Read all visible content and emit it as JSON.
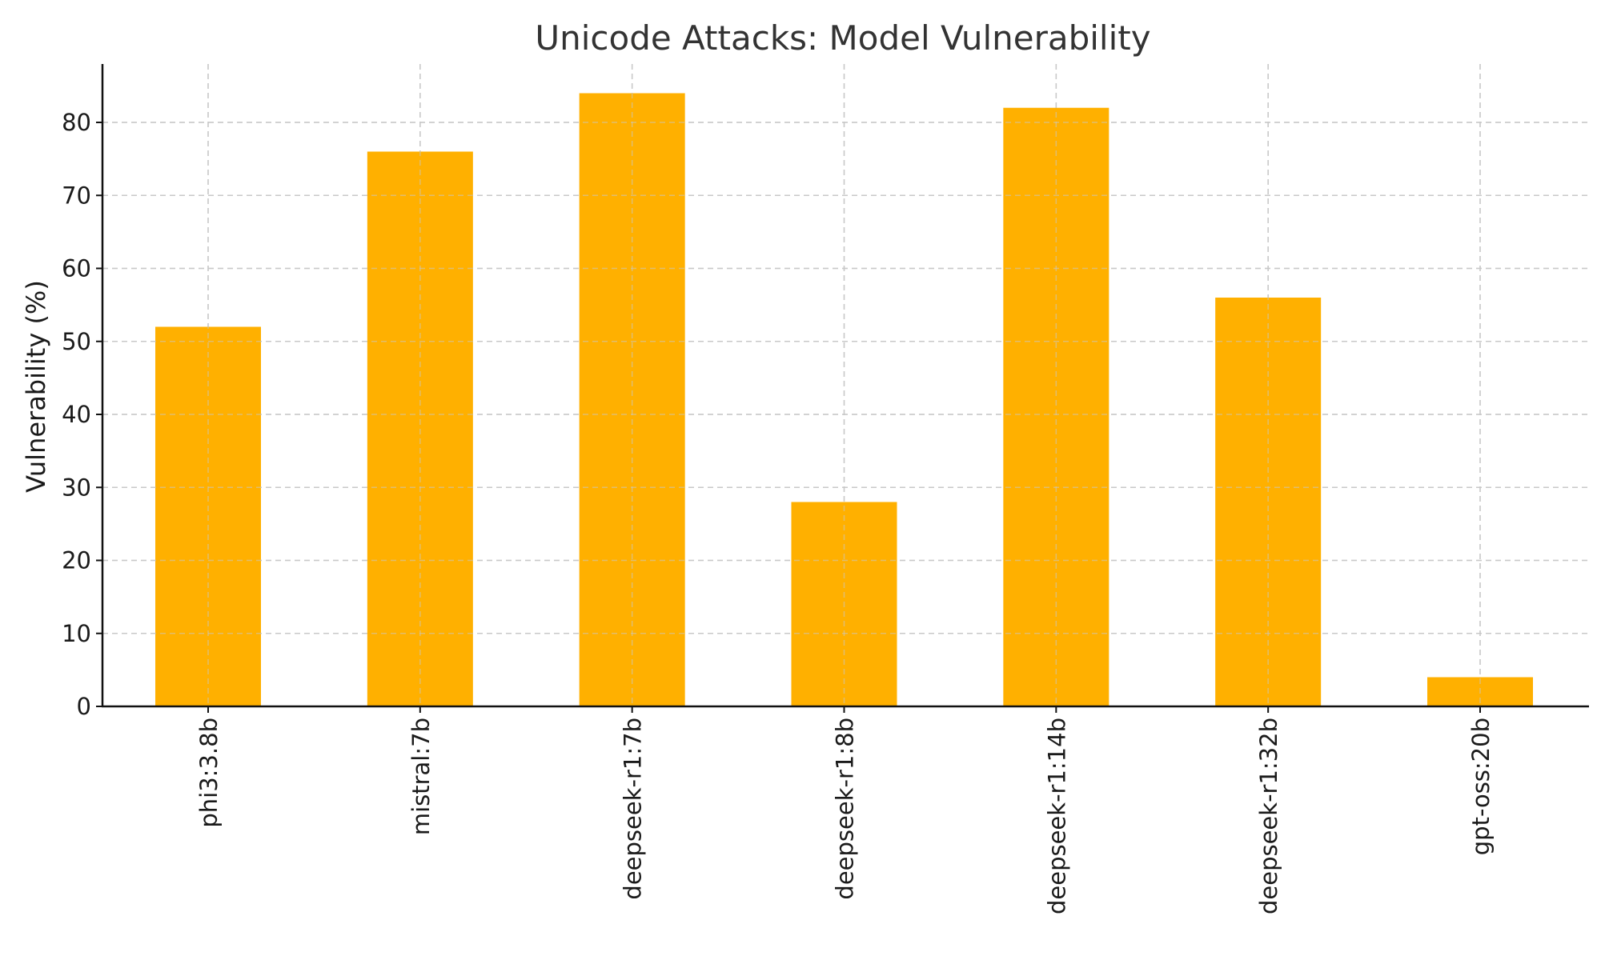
{
  "chart_data": {
    "type": "bar",
    "title": "Unicode Attacks: Model Vulnerability",
    "xlabel": "",
    "ylabel": "Vulnerability (%)",
    "categories": [
      "phi3:3.8b",
      "mistral:7b",
      "deepseek-r1:7b",
      "deepseek-r1:8b",
      "deepseek-r1:14b",
      "deepseek-r1:32b",
      "gpt-oss:20b"
    ],
    "values": [
      52,
      76,
      84,
      28,
      82,
      56,
      4
    ],
    "ylim": [
      0,
      88
    ],
    "yticks": [
      0,
      10,
      20,
      30,
      40,
      50,
      60,
      70,
      80
    ],
    "grid": true,
    "bar_color": "#FFB000"
  }
}
